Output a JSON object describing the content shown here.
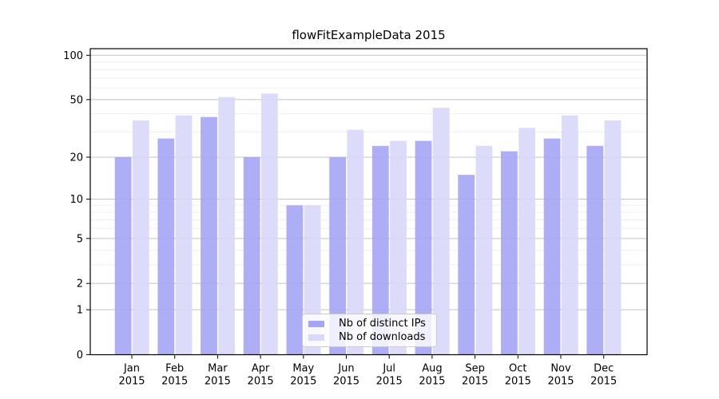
{
  "chart_data": {
    "type": "bar",
    "title": "flowFitExampleData 2015",
    "categories": [
      "Jan",
      "Feb",
      "Mar",
      "Apr",
      "May",
      "Jun",
      "Jul",
      "Aug",
      "Sep",
      "Oct",
      "Nov",
      "Dec"
    ],
    "x_tick_year": "2015",
    "series": [
      {
        "name": "Nb of distinct IPs",
        "color": "#a5a5f5",
        "values": [
          20,
          27,
          38,
          20,
          9,
          20,
          24,
          26,
          15,
          22,
          27,
          24
        ]
      },
      {
        "name": "Nb of downloads",
        "color": "#d8d8fa",
        "values": [
          36,
          39,
          52,
          55,
          9,
          31,
          26,
          44,
          24,
          32,
          39,
          36
        ]
      }
    ],
    "y_axis": {
      "scale": "log1p",
      "tick_values": [
        0,
        1,
        2,
        5,
        10,
        20,
        50,
        100
      ],
      "minor_tick_values": [
        3,
        4,
        6,
        7,
        8,
        9,
        30,
        40,
        60,
        70,
        80,
        90
      ],
      "ylim": [
        0,
        110
      ]
    },
    "legend": {
      "position": "bottom-center"
    },
    "grid": {
      "major_color": "#c3c3c3",
      "minor_color": "#efefef"
    },
    "axis_color": "#000000"
  }
}
